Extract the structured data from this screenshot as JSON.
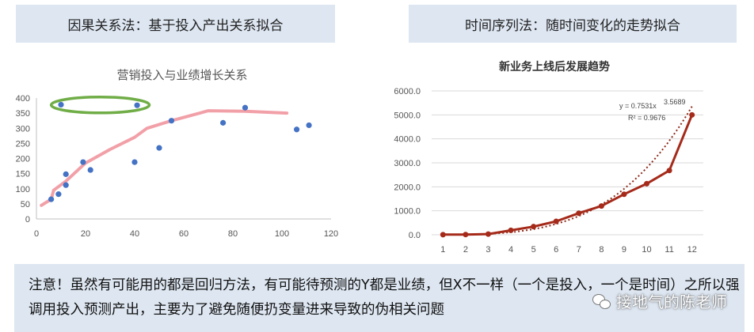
{
  "headers": {
    "left": "因果关系法：基于投入产出关系拟合",
    "right": "时间序列法：随时间变化的走势拟合"
  },
  "note": {
    "text": "注意！虽然有可能用的都是回归方法，有可能待预测的Y都是业绩，但X不一样（一个是投入，一个是时间）之所以强调用投入预测产出，主要为了避免随便扔变量进来导致的伪相关问题"
  },
  "watermark": {
    "text": "接地气的陈老师",
    "icon": "wechat-icon"
  },
  "chart_data": [
    {
      "type": "scatter",
      "title": "营销投入与业绩增长关系",
      "xlim": [
        0,
        120
      ],
      "ylim": [
        0,
        400
      ],
      "xticks": [
        0,
        20,
        40,
        60,
        80,
        100,
        120
      ],
      "yticks": [
        0,
        50,
        100,
        150,
        200,
        250,
        300,
        350,
        400
      ],
      "grid": false,
      "points": [
        {
          "x": 6,
          "y": 65
        },
        {
          "x": 9,
          "y": 82
        },
        {
          "x": 10,
          "y": 378
        },
        {
          "x": 12,
          "y": 148
        },
        {
          "x": 12,
          "y": 112
        },
        {
          "x": 19,
          "y": 188
        },
        {
          "x": 22,
          "y": 162
        },
        {
          "x": 40,
          "y": 188
        },
        {
          "x": 41,
          "y": 376
        },
        {
          "x": 50,
          "y": 235
        },
        {
          "x": 55,
          "y": 325
        },
        {
          "x": 76,
          "y": 318
        },
        {
          "x": 85,
          "y": 368
        },
        {
          "x": 106,
          "y": 296
        },
        {
          "x": 111,
          "y": 310
        }
      ],
      "trend": [
        {
          "x": 2,
          "y": 45
        },
        {
          "x": 6,
          "y": 65
        },
        {
          "x": 7,
          "y": 95
        },
        {
          "x": 12,
          "y": 125
        },
        {
          "x": 20,
          "y": 185
        },
        {
          "x": 30,
          "y": 230
        },
        {
          "x": 40,
          "y": 270
        },
        {
          "x": 45,
          "y": 300
        },
        {
          "x": 55,
          "y": 325
        },
        {
          "x": 70,
          "y": 358
        },
        {
          "x": 85,
          "y": 356
        },
        {
          "x": 102,
          "y": 350
        }
      ],
      "highlight": {
        "x_from": 6,
        "x_to": 46,
        "y": 377
      },
      "colors": {
        "points": "#4472c4",
        "trend": "#f2a0a8",
        "highlight": "#70ad47"
      }
    },
    {
      "type": "line",
      "title": "新业务上线后发展趋势",
      "categories": [
        1,
        2,
        3,
        4,
        5,
        6,
        7,
        8,
        9,
        10,
        11,
        12
      ],
      "values": [
        5,
        10,
        30,
        185,
        340,
        560,
        900,
        1200,
        1690,
        2130,
        2680,
        5000
      ],
      "ylim": [
        0,
        6000
      ],
      "yticks": [
        0,
        1000,
        2000,
        3000,
        4000,
        5000,
        6000
      ],
      "ytick_labels": [
        "0.0",
        "1000.0",
        "2000.0",
        "3000.0",
        "4000.0",
        "5000.0",
        "6000.0"
      ],
      "trendline": {
        "type": "power",
        "a": 0.7531,
        "b": 3.5689
      },
      "equation": "y = 0.7531x",
      "equation_exp": "3.5689",
      "r2": "R² = 0.9676",
      "grid": true,
      "colors": {
        "line": "#a52a1a",
        "trendline": "#8b2a1a",
        "grid": "#d9d9d9"
      }
    }
  ]
}
